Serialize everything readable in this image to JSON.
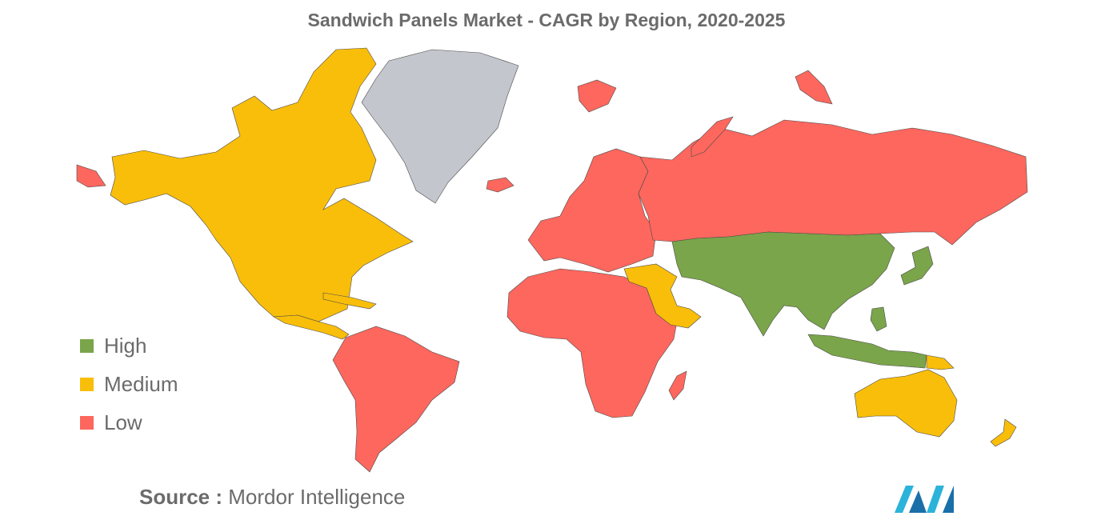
{
  "title": "Sandwich Panels Market - CAGR by Region, 2020-2025",
  "legend": [
    {
      "label": "High",
      "color": "#7aa54a"
    },
    {
      "label": "Medium",
      "color": "#f9be0a"
    },
    {
      "label": "Low",
      "color": "#fd675e"
    }
  ],
  "no_data_color": "#c3c6cc",
  "regions": [
    {
      "name": "North America",
      "level": "Medium"
    },
    {
      "name": "Greenland",
      "level": "No data"
    },
    {
      "name": "South America",
      "level": "Low"
    },
    {
      "name": "Europe",
      "level": "Low"
    },
    {
      "name": "Russia",
      "level": "Low"
    },
    {
      "name": "Africa",
      "level": "Low"
    },
    {
      "name": "Middle East",
      "level": "Medium"
    },
    {
      "name": "Asia",
      "level": "High"
    },
    {
      "name": "Japan",
      "level": "High"
    },
    {
      "name": "Australia",
      "level": "Medium"
    },
    {
      "name": "New Zealand",
      "level": "Medium"
    }
  ],
  "source": {
    "prefix": "Source :",
    "text": "Mordor Intelligence"
  }
}
